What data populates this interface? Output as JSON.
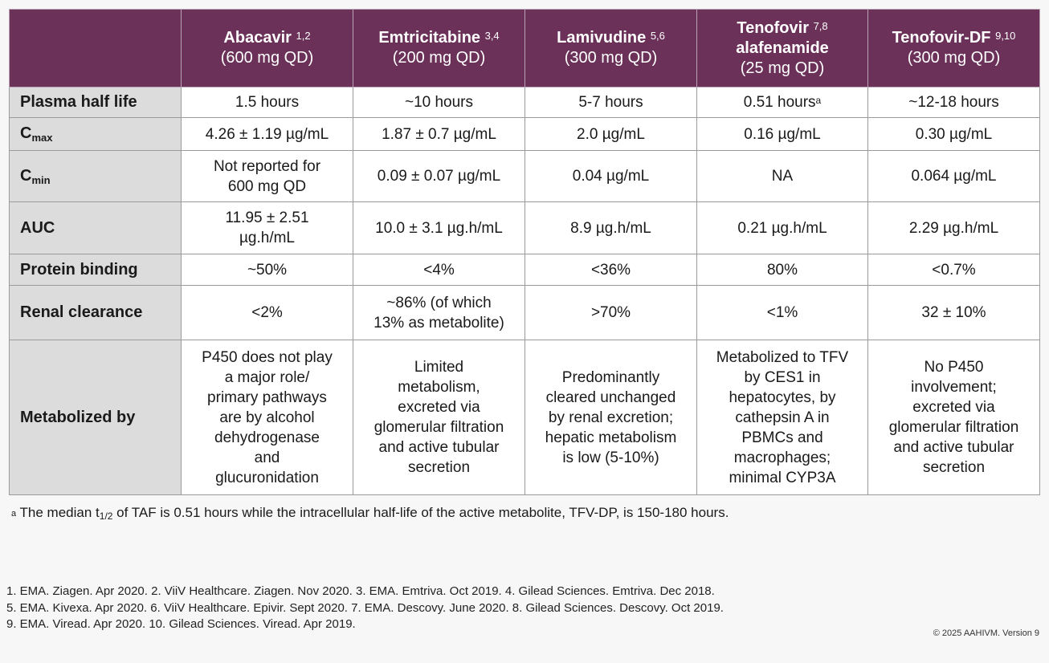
{
  "header": {
    "columns": [
      {
        "drug_lines": [
          "Abacavir"
        ],
        "sup": "1,2",
        "dose": "(600 mg QD)"
      },
      {
        "drug_lines": [
          "Emtricitabine"
        ],
        "sup": "3,4",
        "dose": "(200 mg QD)"
      },
      {
        "drug_lines": [
          "Lamivudine"
        ],
        "sup": "5,6",
        "dose": "(300 mg QD)"
      },
      {
        "drug_lines": [
          "Tenofovir",
          "alafenamide"
        ],
        "sup": "7,8",
        "dose": "(25 mg QD)"
      },
      {
        "drug_lines": [
          "Tenofovir-DF"
        ],
        "sup": "9,10",
        "dose": "(300 mg QD)"
      }
    ]
  },
  "rows": [
    {
      "label": "Plasma half life",
      "label_sub": "",
      "height": 38,
      "cells": [
        [
          "1.5 hours"
        ],
        [
          "~10 hours"
        ],
        [
          "5-7 hours"
        ],
        [
          "0.51 hours"
        ],
        [
          "~12-18 hours"
        ]
      ]
    },
    {
      "label": "C",
      "label_sub": "max",
      "height": 41,
      "cells": [
        [
          "4.26 ± 1.19 µg/mL"
        ],
        [
          "1.87 ± 0.7 µg/mL"
        ],
        [
          "2.0 µg/mL"
        ],
        [
          "0.16 µg/mL"
        ],
        [
          "0.30 µg/mL"
        ]
      ]
    },
    {
      "label": "C",
      "label_sub": "min",
      "height": 64,
      "cells": [
        [
          "Not reported for",
          "600 mg QD"
        ],
        [
          "0.09 ± 0.07 µg/mL"
        ],
        [
          "0.04 µg/mL"
        ],
        [
          "NA"
        ],
        [
          "0.064 µg/mL"
        ]
      ]
    },
    {
      "label": "AUC",
      "label_sub": "",
      "height": 65,
      "cells": [
        [
          "11.95 ± 2.51",
          "µg.h/mL"
        ],
        [
          "10.0 ± 3.1 µg.h/mL"
        ],
        [
          "8.9 µg.h/mL"
        ],
        [
          "0.21 µg.h/mL"
        ],
        [
          "2.29 µg.h/mL"
        ]
      ]
    },
    {
      "label": "Protein binding",
      "label_sub": "",
      "height": 39,
      "cells": [
        [
          "~50%"
        ],
        [
          "<4%"
        ],
        [
          "<36%"
        ],
        [
          "80%"
        ],
        [
          "<0.7%"
        ]
      ]
    },
    {
      "label": "Renal clearance",
      "label_sub": "",
      "height": 68,
      "cells": [
        [
          "<2%"
        ],
        [
          "~86% (of which",
          "13% as metabolite)"
        ],
        [
          ">70%"
        ],
        [
          "<1%"
        ],
        [
          "32 ± 10%"
        ]
      ]
    },
    {
      "label": "Metabolized by",
      "label_sub": "",
      "height": 193,
      "cells": [
        [
          "P450 does not play",
          "a major role/",
          "primary pathways",
          "are by alcohol",
          "dehydrogenase",
          "and",
          "glucuronidation"
        ],
        [
          "Limited",
          "metabolism,",
          "excreted via",
          "glomerular filtration",
          "and active tubular",
          "secretion"
        ],
        [
          "Predominantly",
          "cleared unchanged",
          "by renal excretion;",
          "hepatic metabolism",
          "is low (5-10%)"
        ],
        [
          "Metabolized to TFV",
          "by CES1 in",
          "hepatocytes, by",
          "cathepsin A in",
          "PBMCs and",
          "macrophages;",
          "minimal CYP3A"
        ],
        [
          "No P450",
          "involvement;",
          "excreted via",
          "glomerular filtration",
          "and active tubular",
          "secretion"
        ]
      ]
    }
  ],
  "footnote_marker_cell": "a",
  "footnote": {
    "marker": "a",
    "before": " The median t",
    "sub": "1/2",
    "after": " of TAF is 0.51 hours while the intracellular half-life of the active metabolite, TFV-DP, is 150-180 hours."
  },
  "references": [
    "1. EMA. Ziagen. Apr 2020. 2. ViiV Healthcare. Ziagen. Nov 2020. 3. EMA. Emtriva. Oct 2019. 4. Gilead Sciences. Emtriva. Dec 2018.",
    "5. EMA. Kivexa. Apr 2020. 6. ViiV Healthcare. Epivir. Sept 2020. 7. EMA. Descovy. June 2020. 8. Gilead Sciences. Descovy. Oct 2019.",
    "9. EMA. Viread. Apr 2020. 10. Gilead Sciences. Viread. Apr 2019."
  ],
  "copyright": "© 2025 AAHIVM. Version 9"
}
